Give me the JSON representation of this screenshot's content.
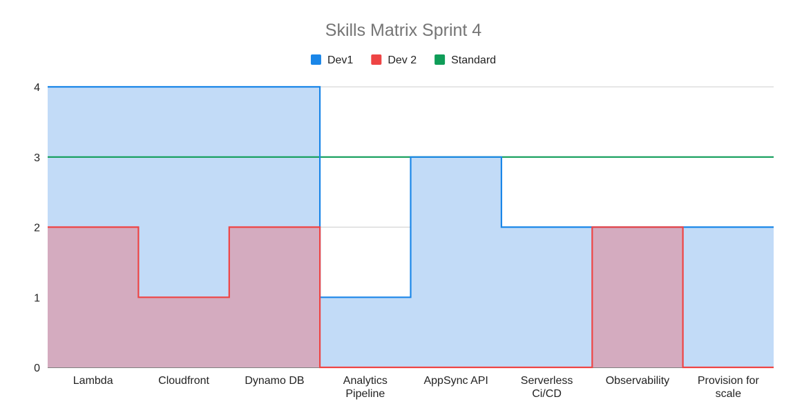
{
  "chart_data": {
    "type": "area",
    "title": "Skills Matrix Sprint 4",
    "xlabel": "",
    "ylabel": "",
    "categories": [
      "Lambda",
      "Cloudfront",
      "Dynamo DB",
      "Analytics Pipeline",
      "AppSync API",
      "Serverless Ci/CD",
      "Observability",
      "Provision for scale"
    ],
    "series": [
      {
        "name": "Dev1",
        "values": [
          4,
          4,
          4,
          1,
          3,
          2,
          2,
          2
        ],
        "color": "#1a86e8",
        "fill": "#c2dbf7"
      },
      {
        "name": "Dev 2",
        "values": [
          2,
          1,
          2,
          0,
          0,
          0,
          2,
          0
        ],
        "color": "#ee4444",
        "fill": "#d4abbf"
      },
      {
        "name": "Standard",
        "values": [
          3,
          3,
          3,
          3,
          3,
          3,
          3,
          3
        ],
        "color": "#0f9d58"
      }
    ],
    "ylim": [
      0,
      4
    ],
    "yticks": [
      0,
      1,
      2,
      3,
      4
    ],
    "grid": true,
    "legend": "top",
    "stepped": true
  }
}
